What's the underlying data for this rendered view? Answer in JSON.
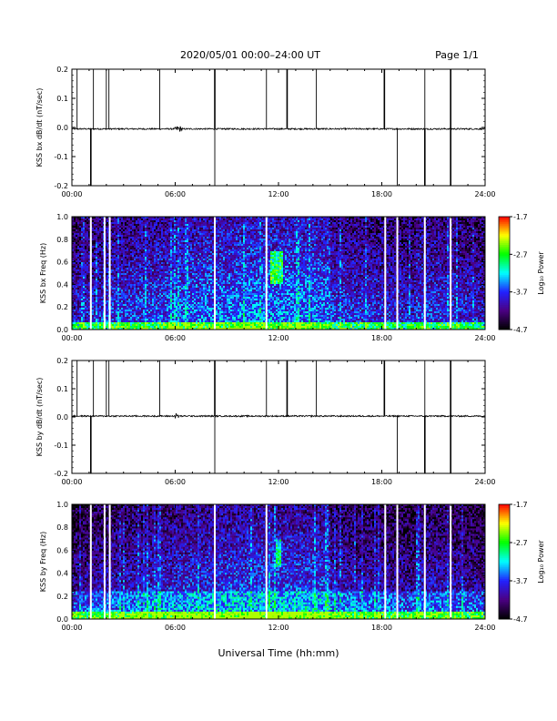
{
  "header": {
    "title": "2020/05/01  00:00–24:00 UT",
    "page": "Page 1/1"
  },
  "x_axis": {
    "label": "Universal Time (hh:mm)",
    "range_hours": [
      0,
      24
    ],
    "tick_labels": [
      "00:00",
      "06:00",
      "12:00",
      "18:00",
      "24:00"
    ]
  },
  "colorbar": {
    "label": "Log₁₀ Power",
    "tick_labels": [
      "-1.7",
      "-2.7",
      "-3.7",
      "-4.7"
    ],
    "range": [
      -4.7,
      -1.7
    ],
    "colors": [
      "#000000",
      "#4b0082",
      "#2222ff",
      "#00ffff",
      "#00ff00",
      "#ffff00",
      "#ff0000"
    ]
  },
  "chart_data": [
    {
      "type": "line",
      "ylabel": "KSS bx dB/dt (nT/sec)",
      "ylim": [
        -0.2,
        0.2
      ],
      "y_tick_labels": [
        "0.2",
        "0.1",
        "0.0",
        "-0.1",
        "-0.2"
      ],
      "baseline": -0.005,
      "up_spikes_hours": [
        0.3,
        1.25,
        2.0,
        2.15,
        5.1,
        8.3,
        11.3,
        12.5,
        14.2,
        18.15,
        20.5,
        22.0
      ],
      "down_spikes_hours": [
        1.1,
        8.3,
        18.9,
        20.5,
        22.0
      ],
      "wave_packet_hours": [
        5.9,
        6.5
      ]
    },
    {
      "type": "heatmap",
      "ylabel": "KSS bx Freq (Hz)",
      "ylim": [
        0.0,
        1.0
      ],
      "y_tick_labels": [
        "1.0",
        "0.8",
        "0.6",
        "0.4",
        "0.2",
        "0.0"
      ],
      "gap_hours": [
        1.1,
        1.9,
        2.2,
        8.3,
        11.3,
        18.2,
        18.9,
        20.5,
        22.0
      ],
      "active_event": {
        "hours": [
          11.5,
          12.3
        ],
        "freq_hz": [
          0.4,
          0.7
        ]
      }
    },
    {
      "type": "line",
      "ylabel": "KSS by dB/dt (nT/sec)",
      "ylim": [
        -0.2,
        0.2
      ],
      "y_tick_labels": [
        "0.2",
        "0.1",
        "0.0",
        "-0.1",
        "-0.2"
      ],
      "baseline": 0.003,
      "up_spikes_hours": [
        0.3,
        1.25,
        2.0,
        2.15,
        5.1,
        8.3,
        11.3,
        12.5,
        14.2,
        18.15,
        20.5,
        22.0
      ],
      "down_spikes_hours": [
        1.1,
        8.3,
        18.9,
        20.5,
        22.0
      ],
      "wave_packet_hours": [
        5.9,
        6.3
      ]
    },
    {
      "type": "heatmap",
      "ylabel": "KSS by Freq (Hz)",
      "ylim": [
        0.0,
        1.0
      ],
      "y_tick_labels": [
        "1.0",
        "0.8",
        "0.6",
        "0.4",
        "0.2",
        "0.0"
      ],
      "gap_hours": [
        1.1,
        1.9,
        2.2,
        8.3,
        11.3,
        18.2,
        18.9,
        20.5,
        22.0
      ],
      "active_event": {
        "hours": [
          11.8,
          12.2
        ],
        "freq_hz": [
          0.45,
          0.7
        ]
      }
    }
  ]
}
